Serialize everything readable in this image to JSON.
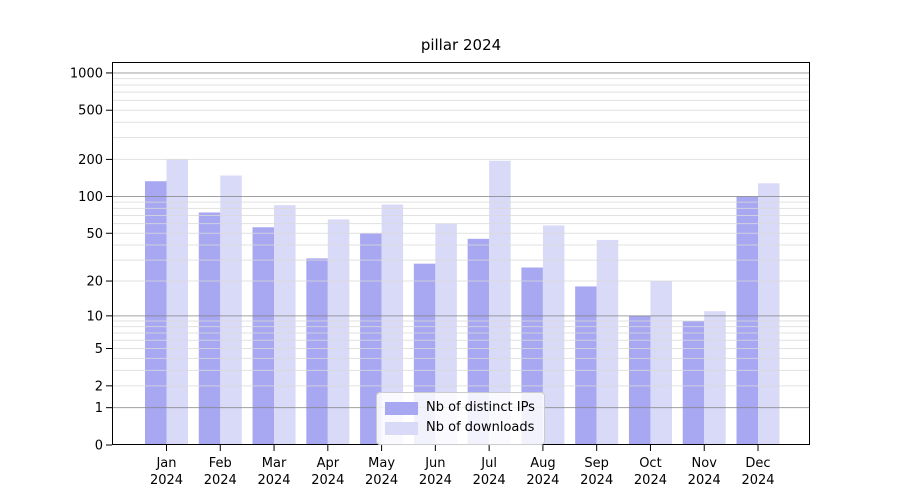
{
  "chart_data": {
    "type": "bar",
    "title": "pillar 2024",
    "categories": [
      "Jan",
      "Feb",
      "Mar",
      "Apr",
      "May",
      "Jun",
      "Jul",
      "Aug",
      "Sep",
      "Oct",
      "Nov",
      "Dec"
    ],
    "xtick_year": "2024",
    "series": [
      {
        "name": "Nb of distinct IPs",
        "color": "#a7a7f2",
        "values": [
          133,
          74,
          56,
          31,
          50,
          28,
          45,
          26,
          18,
          10,
          9,
          100
        ]
      },
      {
        "name": "Nb of downloads",
        "color": "#d9d9f8",
        "values": [
          200,
          148,
          85,
          65,
          86,
          60,
          195,
          58,
          44,
          20,
          11,
          128
        ]
      }
    ],
    "yscale": "log1p",
    "yticks": [
      0,
      1,
      2,
      5,
      10,
      20,
      50,
      100,
      200,
      500,
      1000
    ],
    "ylim": [
      0,
      1200
    ],
    "grid": true,
    "legend_position": "lower center",
    "colors": {
      "major_grid": "rgba(128,128,128,0.75)",
      "minor_grid": "rgba(218,218,218,0.8)",
      "spine": "#000000",
      "text": "#000000"
    }
  }
}
